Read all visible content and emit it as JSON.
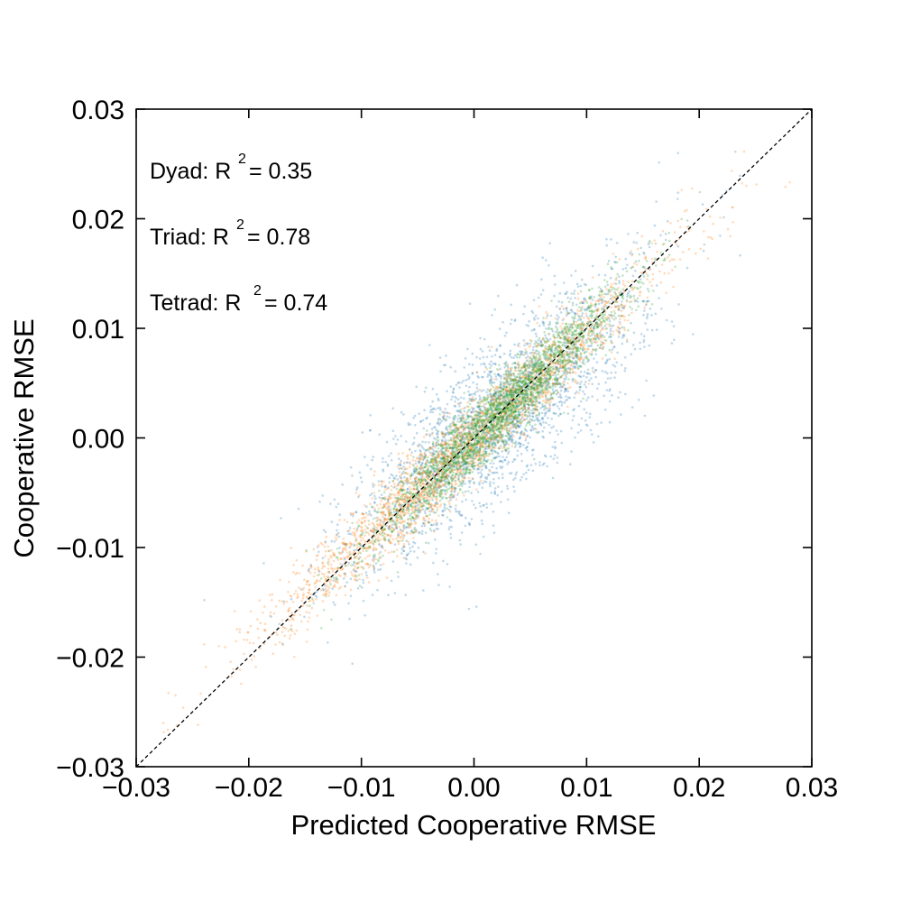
{
  "chart_data": {
    "type": "scatter",
    "title": "",
    "xlabel": "Predicted Cooperative RMSE",
    "ylabel": "Cooperative RMSE",
    "xlim": [
      -0.03,
      0.03
    ],
    "ylim": [
      -0.03,
      0.03
    ],
    "x_ticks": [
      -0.03,
      -0.02,
      -0.01,
      0.0,
      0.01,
      0.02,
      0.03
    ],
    "y_ticks": [
      -0.03,
      -0.02,
      -0.01,
      0.0,
      0.01,
      0.02,
      0.03
    ],
    "x_tick_labels": [
      "−0.03",
      "−0.02",
      "−0.01",
      "0.00",
      "0.01",
      "0.02",
      "0.03"
    ],
    "y_tick_labels": [
      "−0.03",
      "−0.02",
      "−0.01",
      "0.00",
      "0.01",
      "0.02",
      "0.03"
    ],
    "grid": false,
    "reference_line": {
      "style": "dashed",
      "color": "#000000",
      "x": [
        -0.03,
        0.03
      ],
      "y": [
        -0.03,
        0.03
      ]
    },
    "annotations": [
      {
        "prefix": "Dyad: R",
        "sup": "2",
        "suffix": " = 0.35"
      },
      {
        "prefix": "Triad: R",
        "sup": "2",
        "suffix": " = 0.78"
      },
      {
        "prefix": "Tetrad: R",
        "sup": "2",
        "suffix": " = 0.74"
      }
    ],
    "series": [
      {
        "color": "#1f77b4",
        "r2": 0.35,
        "n_points": 2500,
        "x_mean": 0.002,
        "x_sd": 0.0065,
        "slope": 0.85,
        "noise_sd": 0.0038
      },
      {
        "color": "#ff7f0e",
        "r2": 0.78,
        "n_points": 2500,
        "x_mean": -0.001,
        "x_sd": 0.0085,
        "slope": 0.95,
        "noise_sd": 0.0018
      },
      {
        "color": "#2ca02c",
        "r2": 0.74,
        "n_points": 2500,
        "x_mean": 0.002,
        "x_sd": 0.0055,
        "slope": 0.98,
        "noise_sd": 0.0016
      }
    ]
  }
}
